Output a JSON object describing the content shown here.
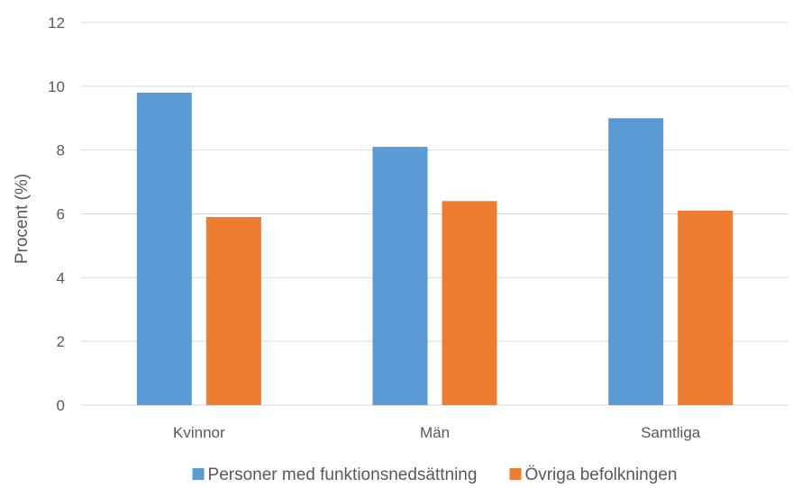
{
  "chart_data": {
    "type": "bar",
    "categories": [
      "Kvinnor",
      "Män",
      "Samtliga"
    ],
    "series": [
      {
        "name": "Personer med funktionsnedsättning",
        "color": "#5b9bd5",
        "values": [
          9.8,
          8.1,
          9.0
        ]
      },
      {
        "name": "Övriga befolkningen",
        "color": "#ed7d31",
        "values": [
          5.9,
          6.4,
          6.1
        ]
      }
    ],
    "ylabel": "Procent (%)",
    "xlabel": "",
    "ylim": [
      0,
      12
    ],
    "yticks": [
      0,
      2,
      4,
      6,
      8,
      10,
      12
    ],
    "grid": true,
    "legend_position": "bottom"
  }
}
